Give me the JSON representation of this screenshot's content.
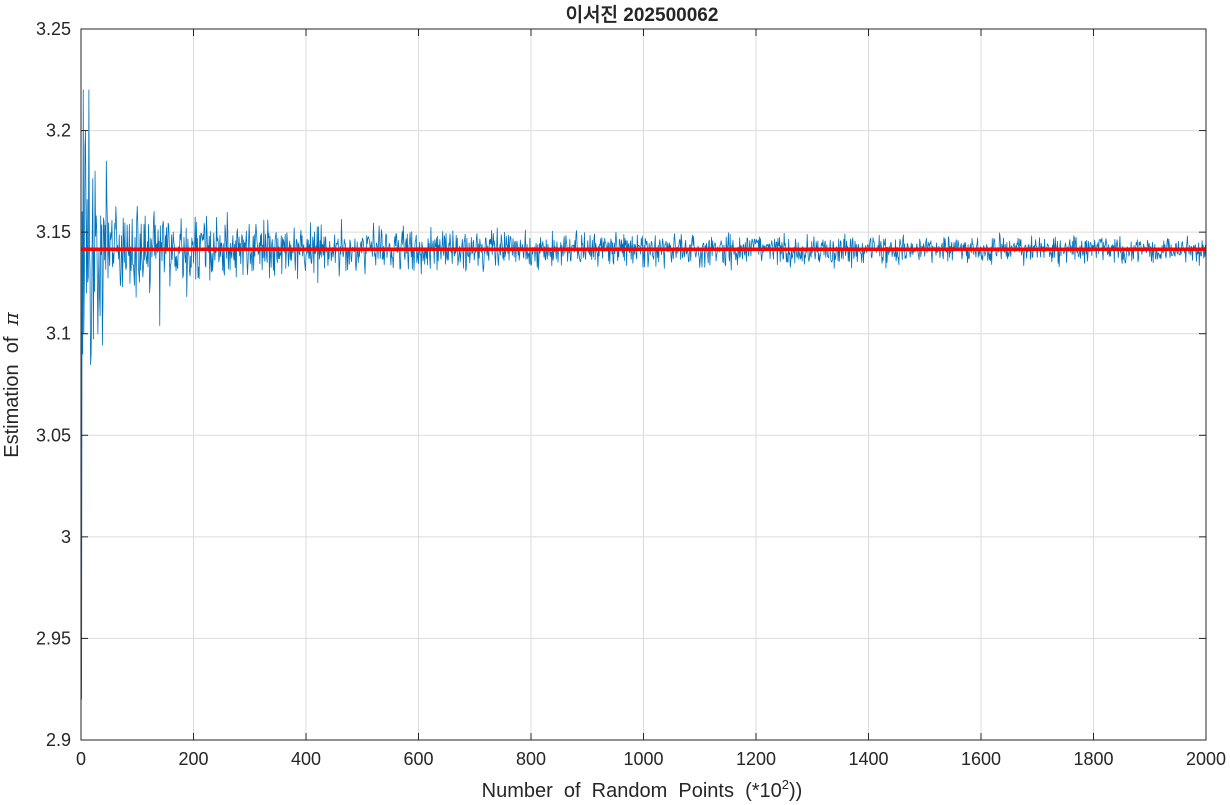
{
  "chart_data": {
    "type": "line",
    "title": "이서진 202500062",
    "xlabel": {
      "text": "Number  of  Random  Points  (*10",
      "superscript": "2",
      "suffix": "))"
    },
    "ylabel": {
      "text": "Estimation  of  ",
      "symbol": "π"
    },
    "xlim": [
      0,
      2000
    ],
    "ylim": [
      2.9,
      3.25
    ],
    "xticks": [
      0,
      200,
      400,
      600,
      800,
      1000,
      1200,
      1400,
      1600,
      1800,
      2000
    ],
    "xtick_labels": [
      "0",
      "200",
      "400",
      "600",
      "800",
      "1000",
      "1200",
      "1400",
      "1600",
      "1800",
      "2000"
    ],
    "yticks": [
      2.9,
      2.95,
      3.0,
      3.05,
      3.1,
      3.15,
      3.2,
      3.25
    ],
    "ytick_labels": [
      "2.9",
      "2.95",
      "3",
      "3.05",
      "3.1",
      "3.15",
      "3.2",
      "3.25"
    ],
    "grid": true,
    "legend": "none",
    "series": [
      {
        "role": "estimate",
        "color": "#0072BD",
        "x_start": 1,
        "x_end": 2000,
        "x_step": 1,
        "n_points": 2000,
        "early_values": [
          {
            "x": 1,
            "y": 2.92
          },
          {
            "x": 2,
            "y": 3.16
          },
          {
            "x": 3,
            "y": 3.09
          },
          {
            "x": 4,
            "y": 3.22
          },
          {
            "x": 5,
            "y": 3.1
          },
          {
            "x": 8,
            "y": 3.2
          },
          {
            "x": 10,
            "y": 3.12
          },
          {
            "x": 14,
            "y": 3.22
          },
          {
            "x": 18,
            "y": 3.09
          },
          {
            "x": 25,
            "y": 3.18
          },
          {
            "x": 30,
            "y": 3.1
          },
          {
            "x": 45,
            "y": 3.185
          },
          {
            "x": 140,
            "y": 3.104
          }
        ],
        "envelope": [
          {
            "x": 50,
            "y_min": 3.1,
            "y_max": 3.18
          },
          {
            "x": 100,
            "y_min": 3.11,
            "y_max": 3.17
          },
          {
            "x": 200,
            "y_min": 3.115,
            "y_max": 3.165
          },
          {
            "x": 400,
            "y_min": 3.12,
            "y_max": 3.16
          },
          {
            "x": 600,
            "y_min": 3.123,
            "y_max": 3.156
          },
          {
            "x": 800,
            "y_min": 3.126,
            "y_max": 3.155
          },
          {
            "x": 1000,
            "y_min": 3.128,
            "y_max": 3.153
          },
          {
            "x": 1400,
            "y_min": 3.13,
            "y_max": 3.152
          },
          {
            "x": 2000,
            "y_min": 3.132,
            "y_max": 3.15
          }
        ]
      },
      {
        "role": "true-pi-reference",
        "color": "#FF0000",
        "value": 3.14159,
        "x_range": [
          0,
          2000
        ]
      }
    ]
  }
}
